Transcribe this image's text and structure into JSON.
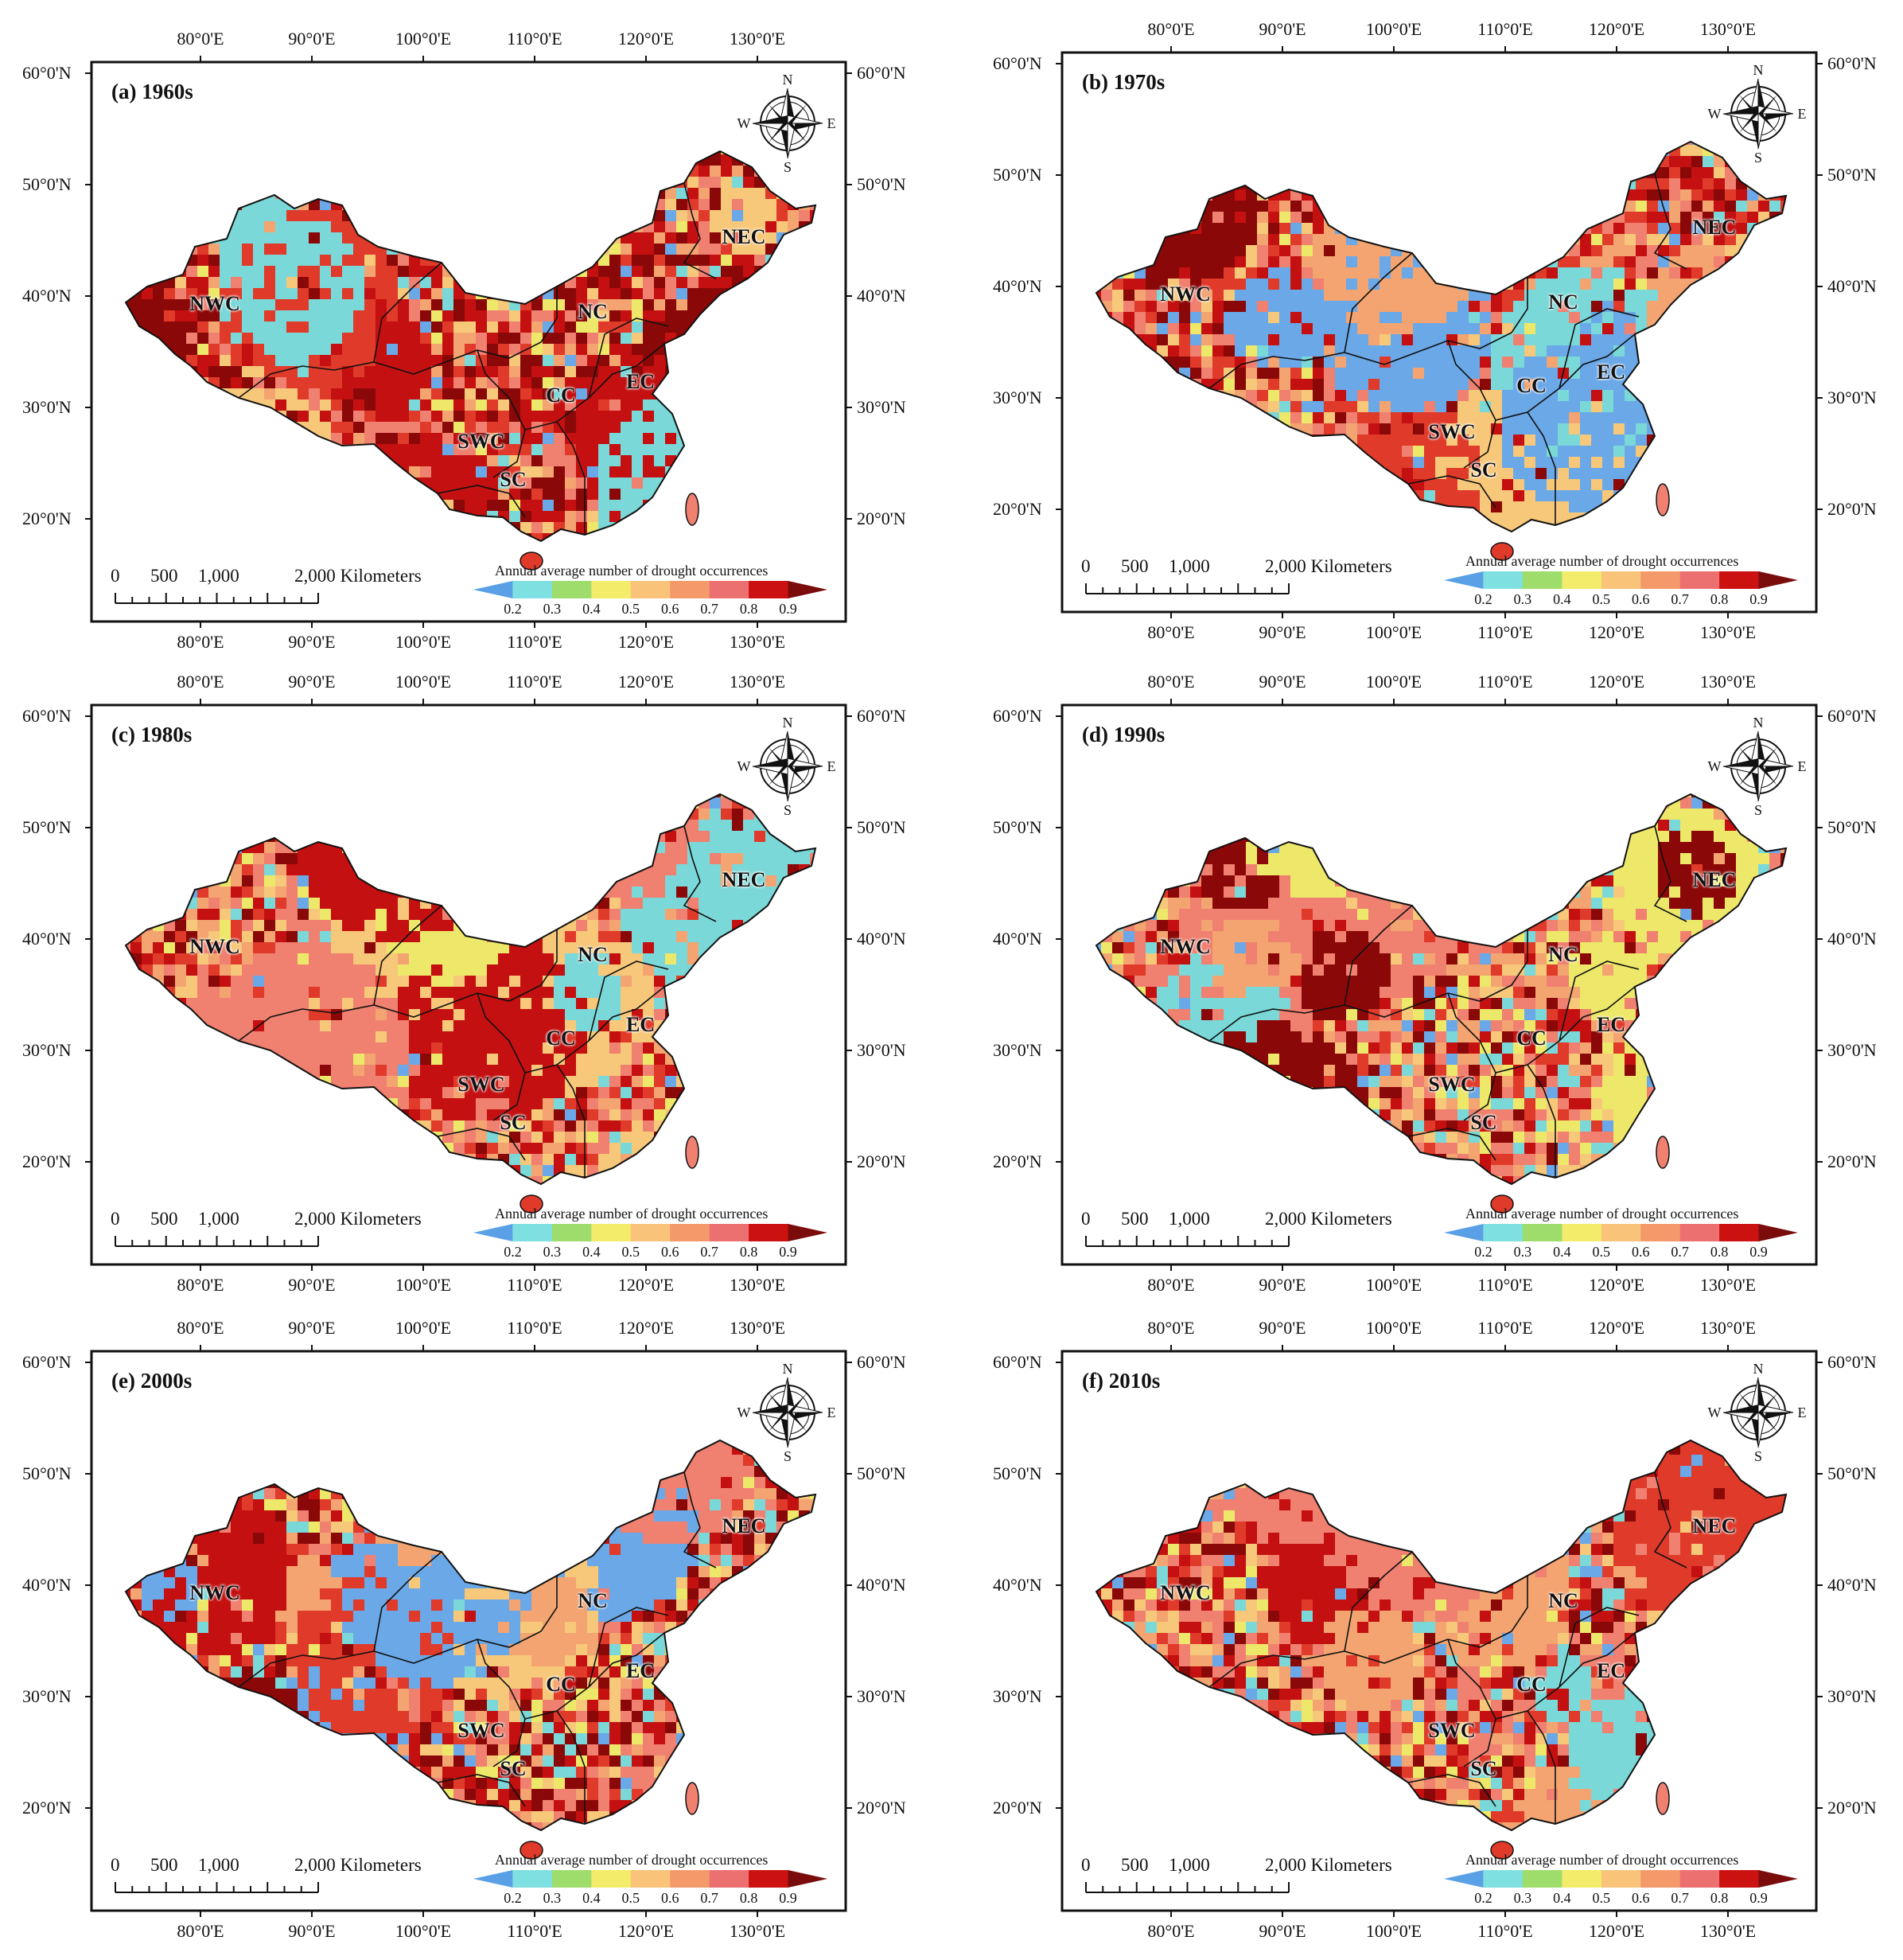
{
  "figure": {
    "latitude_labels": [
      "60°0'N",
      "50°0'N",
      "40°0'N",
      "30°0'N",
      "20°0'N"
    ],
    "longitude_labels": [
      "80°0'E",
      "90°0'E",
      "100°0'E",
      "110°0'E",
      "120°0'E",
      "130°0'E"
    ],
    "scale_bar": {
      "labels": [
        "0",
        "500",
        "1,000",
        "2,000 Kilometers"
      ]
    },
    "legend": {
      "title": "Annual average number of drought occurrences",
      "ticks": [
        "0.2",
        "0.3",
        "0.4",
        "0.5",
        "0.6",
        "0.7",
        "0.8",
        "0.9"
      ],
      "colors": [
        "#5aa0e6",
        "#7ee0e0",
        "#9edc6c",
        "#f2ec6a",
        "#f9c47a",
        "#f49a6a",
        "#ec7070",
        "#cc1111",
        "#7a0c0c"
      ]
    },
    "compass": {
      "n": "N",
      "s": "S",
      "e": "E",
      "w": "W"
    },
    "regions": [
      "NWC",
      "NC",
      "NEC",
      "CC",
      "EC",
      "SWC",
      "SC"
    ],
    "panels": [
      {
        "title": "(a) 1960s",
        "palette": [
          "#8b0808",
          "#c41010",
          "#e03a2a",
          "#f08070",
          "#f3a470",
          "#f7c87a",
          "#eee86a",
          "#7bd8d8",
          "#6aa8e8"
        ],
        "weights": [
          0.2,
          0.25,
          0.12,
          0.15,
          0.1,
          0.07,
          0.04,
          0.04,
          0.03
        ]
      },
      {
        "title": "(b) 1970s",
        "palette": [
          "#8b0808",
          "#c41010",
          "#e03a2a",
          "#f08070",
          "#f3a470",
          "#f7c87a",
          "#eee86a",
          "#7bd8d8",
          "#6aa8e8"
        ],
        "weights": [
          0.15,
          0.2,
          0.12,
          0.2,
          0.13,
          0.08,
          0.05,
          0.04,
          0.03
        ]
      },
      {
        "title": "(c) 1980s",
        "palette": [
          "#8b0808",
          "#c41010",
          "#e03a2a",
          "#f08070",
          "#f3a470",
          "#f7c87a",
          "#eee86a",
          "#7bd8d8",
          "#6aa8e8"
        ],
        "weights": [
          0.1,
          0.15,
          0.12,
          0.22,
          0.15,
          0.1,
          0.08,
          0.05,
          0.03
        ]
      },
      {
        "title": "(d) 1990s",
        "palette": [
          "#8b0808",
          "#c41010",
          "#e03a2a",
          "#f08070",
          "#f3a470",
          "#f7c87a",
          "#eee86a",
          "#7bd8d8",
          "#6aa8e8"
        ],
        "weights": [
          0.1,
          0.1,
          0.1,
          0.2,
          0.15,
          0.12,
          0.1,
          0.08,
          0.05
        ]
      },
      {
        "title": "(e) 2000s",
        "palette": [
          "#8b0808",
          "#c41010",
          "#e03a2a",
          "#f08070",
          "#f3a470",
          "#f7c87a",
          "#eee86a",
          "#7bd8d8",
          "#6aa8e8"
        ],
        "weights": [
          0.18,
          0.18,
          0.1,
          0.16,
          0.12,
          0.08,
          0.08,
          0.07,
          0.03
        ]
      },
      {
        "title": "(f) 2010s",
        "palette": [
          "#8b0808",
          "#c41010",
          "#e03a2a",
          "#f08070",
          "#f3a470",
          "#f7c87a",
          "#eee86a",
          "#7bd8d8",
          "#6aa8e8"
        ],
        "weights": [
          0.1,
          0.14,
          0.12,
          0.2,
          0.16,
          0.1,
          0.08,
          0.06,
          0.04
        ]
      }
    ]
  }
}
